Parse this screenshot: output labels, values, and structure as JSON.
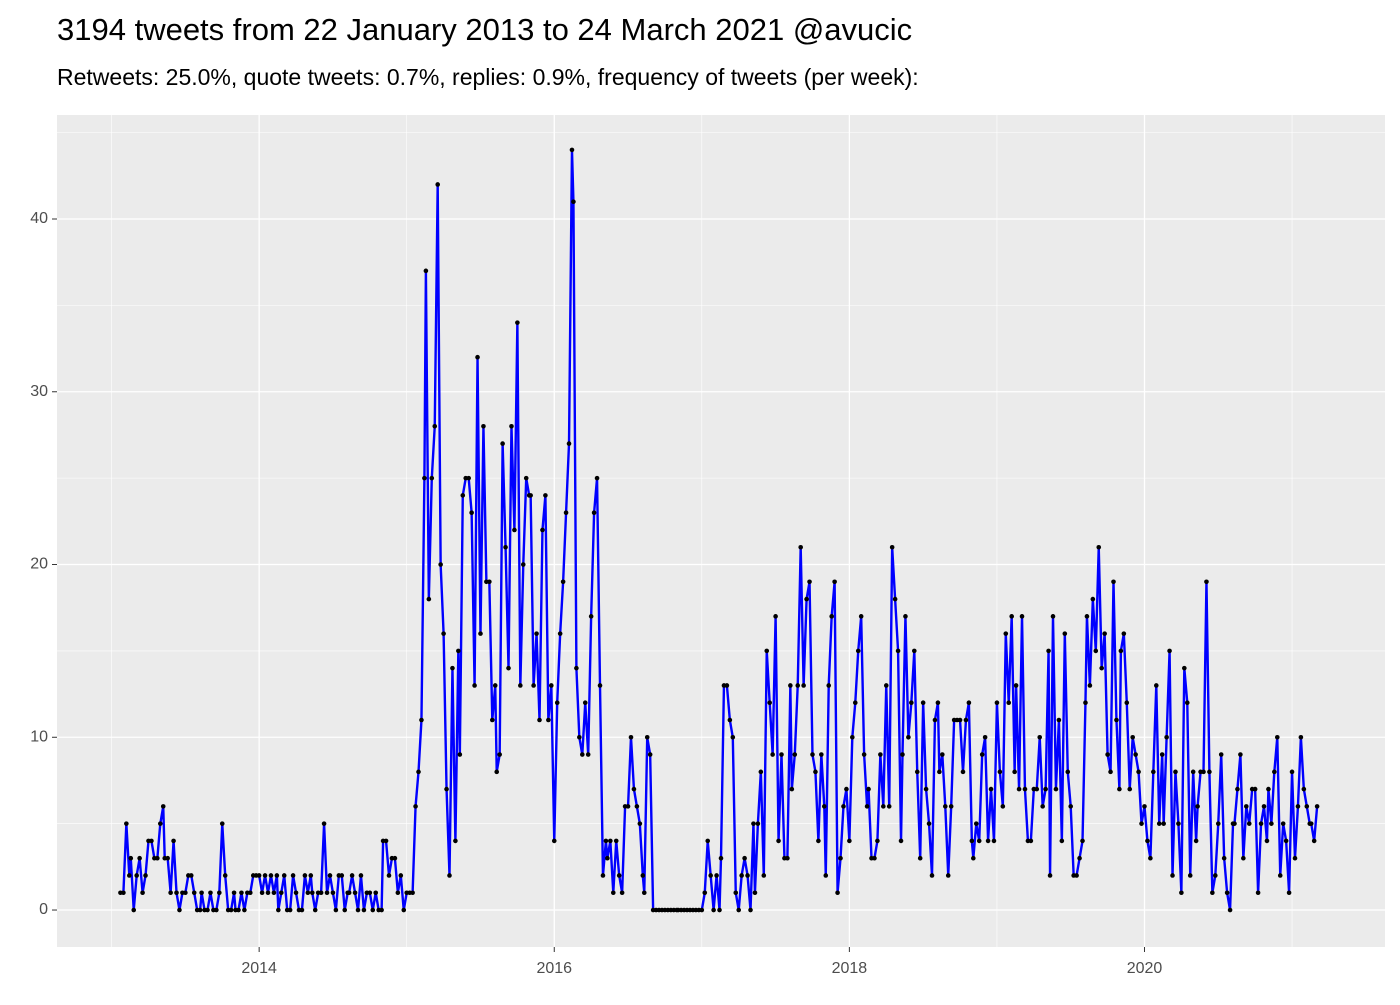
{
  "chart_data": {
    "type": "line",
    "title": "3194 tweets from 22 January 2013 to 24 March 2021 @avucic",
    "subtitle": "Retweets: 25.0%, quote tweets: 0.7%, replies: 0.9%, frequency of tweets (per week):",
    "color": "#0000ff",
    "point_color": "#000000",
    "grid": true,
    "xlim": [
      2012.63,
      2021.63
    ],
    "xticks": [
      2014,
      2016,
      2018,
      2020
    ],
    "ylim": [
      -2.14,
      46.02
    ],
    "yticks": [
      0,
      10,
      20,
      30,
      40
    ],
    "x": [
      2013.06,
      2013.08,
      2013.1,
      2013.12,
      2013.13,
      2013.15,
      2013.17,
      2013.19,
      2013.21,
      2013.23,
      2013.25,
      2013.27,
      2013.29,
      2013.31,
      2013.33,
      2013.35,
      2013.36,
      2013.38,
      2013.4,
      2013.42,
      2013.44,
      2013.46,
      2013.48,
      2013.5,
      2013.52,
      2013.54,
      2013.56,
      2013.58,
      2013.6,
      2013.61,
      2013.63,
      2013.65,
      2013.67,
      2013.69,
      2013.71,
      2013.73,
      2013.75,
      2013.77,
      2013.79,
      2013.81,
      2013.83,
      2013.84,
      2013.86,
      2013.88,
      2013.9,
      2013.92,
      2013.94,
      2013.96,
      2013.98,
      2014,
      2014.02,
      2014.04,
      2014.06,
      2014.08,
      2014.1,
      2014.12,
      2014.13,
      2014.15,
      2014.17,
      2014.19,
      2014.21,
      2014.23,
      2014.25,
      2014.27,
      2014.29,
      2014.31,
      2014.33,
      2014.35,
      2014.36,
      2014.38,
      2014.4,
      2014.42,
      2014.44,
      2014.46,
      2014.48,
      2014.5,
      2014.52,
      2014.54,
      2014.56,
      2014.58,
      2014.6,
      2014.61,
      2014.63,
      2014.65,
      2014.67,
      2014.69,
      2014.71,
      2014.73,
      2014.75,
      2014.77,
      2014.79,
      2014.81,
      2014.83,
      2014.84,
      2014.86,
      2014.88,
      2014.9,
      2014.92,
      2014.94,
      2014.96,
      2014.98,
      2015,
      2015.02,
      2015.04,
      2015.06,
      2015.08,
      2015.1,
      2015.12,
      2015.13,
      2015.15,
      2015.17,
      2015.19,
      2015.21,
      2015.23,
      2015.25,
      2015.27,
      2015.29,
      2015.31,
      2015.33,
      2015.35,
      2015.36,
      2015.38,
      2015.4,
      2015.42,
      2015.44,
      2015.46,
      2015.48,
      2015.5,
      2015.52,
      2015.54,
      2015.56,
      2015.58,
      2015.6,
      2015.61,
      2015.63,
      2015.65,
      2015.67,
      2015.69,
      2015.71,
      2015.73,
      2015.75,
      2015.77,
      2015.79,
      2015.81,
      2015.83,
      2015.84,
      2015.86,
      2015.88,
      2015.9,
      2015.92,
      2015.94,
      2015.96,
      2015.98,
      2016,
      2016.02,
      2016.04,
      2016.06,
      2016.08,
      2016.1,
      2016.12,
      2016.13,
      2016.15,
      2016.17,
      2016.19,
      2016.21,
      2016.23,
      2016.25,
      2016.27,
      2016.29,
      2016.31,
      2016.33,
      2016.35,
      2016.36,
      2016.38,
      2016.4,
      2016.42,
      2016.44,
      2016.46,
      2016.48,
      2016.5,
      2016.52,
      2016.54,
      2016.56,
      2016.58,
      2016.6,
      2016.61,
      2016.63,
      2016.65,
      2016.67,
      2016.69,
      2016.71,
      2016.73,
      2016.75,
      2016.77,
      2016.79,
      2016.81,
      2016.83,
      2016.84,
      2016.86,
      2016.88,
      2016.9,
      2016.92,
      2016.94,
      2016.96,
      2016.98,
      2017,
      2017.02,
      2017.04,
      2017.06,
      2017.08,
      2017.1,
      2017.12,
      2017.13,
      2017.15,
      2017.17,
      2017.19,
      2017.21,
      2017.23,
      2017.25,
      2017.27,
      2017.29,
      2017.31,
      2017.33,
      2017.35,
      2017.36,
      2017.38,
      2017.4,
      2017.42,
      2017.44,
      2017.46,
      2017.48,
      2017.5,
      2017.52,
      2017.54,
      2017.56,
      2017.58,
      2017.6,
      2017.61,
      2017.63,
      2017.65,
      2017.67,
      2017.69,
      2017.71,
      2017.73,
      2017.75,
      2017.77,
      2017.79,
      2017.81,
      2017.83,
      2017.84,
      2017.86,
      2017.88,
      2017.9,
      2017.92,
      2017.94,
      2017.96,
      2017.98,
      2018,
      2018.02,
      2018.04,
      2018.06,
      2018.08,
      2018.1,
      2018.12,
      2018.13,
      2018.15,
      2018.17,
      2018.19,
      2018.21,
      2018.23,
      2018.25,
      2018.27,
      2018.29,
      2018.31,
      2018.33,
      2018.35,
      2018.36,
      2018.38,
      2018.4,
      2018.42,
      2018.44,
      2018.46,
      2018.48,
      2018.5,
      2018.52,
      2018.54,
      2018.56,
      2018.58,
      2018.6,
      2018.61,
      2018.63,
      2018.65,
      2018.67,
      2018.69,
      2018.71,
      2018.73,
      2018.75,
      2018.77,
      2018.79,
      2018.81,
      2018.83,
      2018.84,
      2018.86,
      2018.88,
      2018.9,
      2018.92,
      2018.94,
      2018.96,
      2018.98,
      2019,
      2019.02,
      2019.04,
      2019.06,
      2019.08,
      2019.1,
      2019.12,
      2019.13,
      2019.15,
      2019.17,
      2019.19,
      2019.21,
      2019.23,
      2019.25,
      2019.27,
      2019.29,
      2019.31,
      2019.33,
      2019.35,
      2019.36,
      2019.38,
      2019.4,
      2019.42,
      2019.44,
      2019.46,
      2019.48,
      2019.5,
      2019.52,
      2019.54,
      2019.56,
      2019.58,
      2019.6,
      2019.61,
      2019.63,
      2019.65,
      2019.67,
      2019.69,
      2019.71,
      2019.73,
      2019.75,
      2019.77,
      2019.79,
      2019.81,
      2019.83,
      2019.84,
      2019.86,
      2019.88,
      2019.9,
      2019.92,
      2019.94,
      2019.96,
      2019.98,
      2020,
      2020.02,
      2020.04,
      2020.06,
      2020.08,
      2020.1,
      2020.12,
      2020.13,
      2020.15,
      2020.17,
      2020.19,
      2020.21,
      2020.23,
      2020.25,
      2020.27,
      2020.29,
      2020.31,
      2020.33,
      2020.35,
      2020.36,
      2020.38,
      2020.4,
      2020.42,
      2020.44,
      2020.46,
      2020.48,
      2020.5,
      2020.52,
      2020.54,
      2020.56,
      2020.58,
      2020.6,
      2020.61,
      2020.63,
      2020.65,
      2020.67,
      2020.69,
      2020.71,
      2020.73,
      2020.75,
      2020.77,
      2020.79,
      2020.81,
      2020.83,
      2020.84,
      2020.86,
      2020.88,
      2020.9,
      2020.92,
      2020.94,
      2020.96,
      2020.98,
      2021,
      2021.02,
      2021.04,
      2021.06,
      2021.08,
      2021.1,
      2021.12,
      2021.13,
      2021.15,
      2021.17
    ],
    "values": [
      1,
      1,
      5,
      2,
      3,
      0,
      2,
      3,
      1,
      2,
      4,
      4,
      3,
      3,
      5,
      6,
      3,
      3,
      1,
      4,
      1,
      0,
      1,
      1,
      2,
      2,
      1,
      0,
      0,
      1,
      0,
      0,
      1,
      0,
      0,
      1,
      5,
      2,
      0,
      0,
      1,
      0,
      0,
      1,
      0,
      1,
      1,
      2,
      2,
      2,
      1,
      2,
      1,
      2,
      1,
      2,
      0,
      1,
      2,
      0,
      0,
      2,
      1,
      0,
      0,
      2,
      1,
      2,
      1,
      0,
      1,
      1,
      5,
      1,
      2,
      1,
      0,
      2,
      2,
      0,
      1,
      1,
      2,
      1,
      0,
      2,
      0,
      1,
      1,
      0,
      1,
      0,
      0,
      4,
      4,
      2,
      3,
      3,
      1,
      2,
      0,
      1,
      1,
      1,
      6,
      8,
      11,
      25,
      37,
      18,
      25,
      28,
      42,
      20,
      16,
      7,
      2,
      14,
      4,
      15,
      9,
      24,
      25,
      25,
      23,
      13,
      32,
      16,
      28,
      19,
      19,
      11,
      13,
      8,
      9,
      27,
      21,
      14,
      28,
      22,
      34,
      13,
      20,
      25,
      24,
      24,
      13,
      16,
      11,
      22,
      24,
      11,
      13,
      4,
      12,
      16,
      19,
      23,
      27,
      44,
      41,
      14,
      10,
      9,
      12,
      9,
      17,
      23,
      25,
      13,
      2,
      4,
      3,
      4,
      1,
      4,
      2,
      1,
      6,
      6,
      10,
      7,
      6,
      5,
      2,
      1,
      10,
      9,
      0,
      0,
      0,
      0,
      0,
      0,
      0,
      0,
      0,
      0,
      0,
      0,
      0,
      0,
      0,
      0,
      0,
      0,
      1,
      4,
      2,
      0,
      2,
      0,
      3,
      13,
      13,
      11,
      10,
      1,
      0,
      2,
      3,
      2,
      0,
      5,
      1,
      5,
      8,
      2,
      15,
      12,
      9,
      17,
      4,
      9,
      3,
      3,
      13,
      7,
      9,
      13,
      21,
      13,
      18,
      19,
      9,
      8,
      4,
      9,
      6,
      2,
      13,
      17,
      19,
      1,
      3,
      6,
      7,
      4,
      10,
      12,
      15,
      17,
      9,
      6,
      7,
      3,
      3,
      4,
      9,
      6,
      13,
      6,
      21,
      18,
      15,
      4,
      9,
      17,
      10,
      12,
      15,
      8,
      3,
      12,
      7,
      5,
      2,
      11,
      12,
      8,
      9,
      6,
      2,
      6,
      11,
      11,
      11,
      8,
      11,
      12,
      4,
      3,
      5,
      4,
      9,
      10,
      4,
      7,
      4,
      12,
      8,
      6,
      16,
      12,
      17,
      8,
      13,
      7,
      17,
      7,
      4,
      4,
      7,
      7,
      10,
      6,
      7,
      15,
      2,
      17,
      7,
      11,
      4,
      16,
      8,
      6,
      2,
      2,
      3,
      4,
      12,
      17,
      13,
      18,
      15,
      21,
      14,
      16,
      9,
      8,
      19,
      11,
      7,
      15,
      16,
      12,
      7,
      10,
      9,
      8,
      5,
      6,
      4,
      3,
      8,
      13,
      5,
      9,
      5,
      10,
      15,
      2,
      8,
      5,
      1,
      14,
      12,
      2,
      8,
      4,
      6,
      8,
      8,
      19,
      8,
      1,
      2,
      5,
      9,
      3,
      1,
      0,
      5,
      5,
      7,
      9,
      3,
      6,
      5,
      7,
      7,
      1,
      5,
      6,
      4,
      7,
      5,
      8,
      10,
      2,
      5,
      4,
      1,
      8,
      3,
      6,
      10,
      7,
      6,
      5,
      5,
      4,
      6
    ]
  }
}
